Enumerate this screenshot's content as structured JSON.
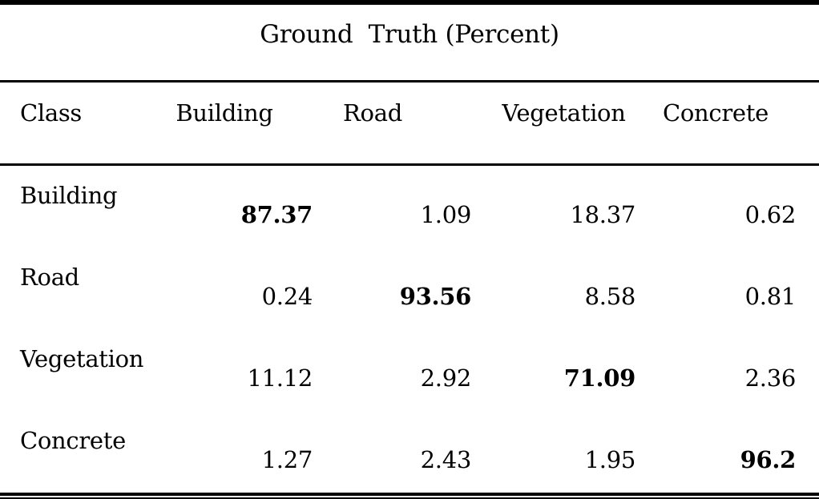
{
  "table": {
    "title": "Ground  Truth (Percent)",
    "columns": [
      "Class",
      "Building",
      "Road",
      "Vegetation",
      "Concrete"
    ],
    "rows": [
      {
        "label": "Building",
        "values": [
          "87.37",
          "1.09",
          "18.37",
          "0.62"
        ],
        "bold_value_index": 0
      },
      {
        "label": "Road",
        "values": [
          "0.24",
          "93.56",
          "8.58",
          "0.81"
        ],
        "bold_value_index": 1
      },
      {
        "label": "Vegetation",
        "values": [
          "11.12",
          "2.92",
          "71.09",
          "2.36"
        ],
        "bold_value_index": 2
      },
      {
        "label": "Concrete",
        "values": [
          "1.27",
          "2.43",
          "1.95",
          "96.2"
        ],
        "bold_value_index": 3
      }
    ]
  },
  "colors": {
    "text": "#000000",
    "background": "#ffffff",
    "rule": "#000000"
  }
}
